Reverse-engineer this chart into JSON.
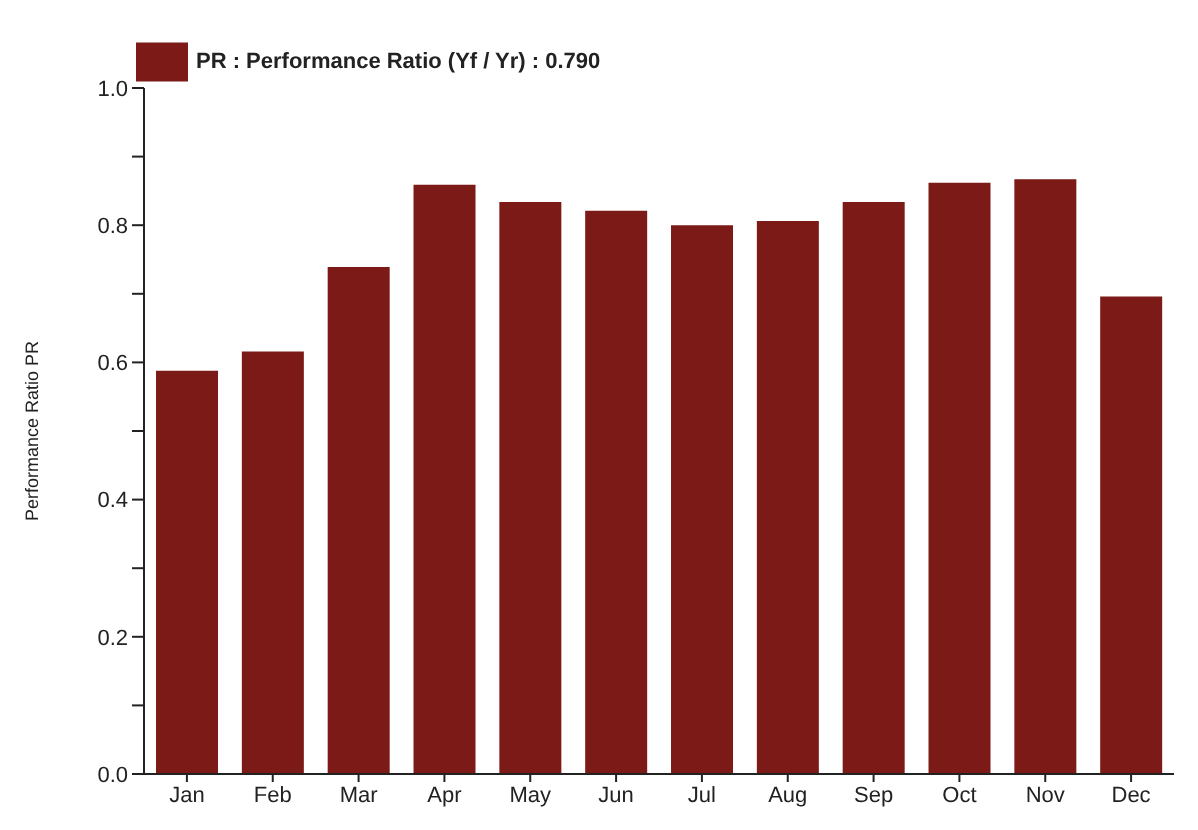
{
  "chart_data": {
    "type": "bar",
    "ylabel": "Performance Ratio  PR",
    "categories": [
      "Jan",
      "Feb",
      "Mar",
      "Apr",
      "May",
      "Jun",
      "Jul",
      "Aug",
      "Sep",
      "Oct",
      "Nov",
      "Dec"
    ],
    "series": [
      {
        "name": "PR : Performance Ratio (Yf / Yr) :  0.790",
        "color": "#7b1a16",
        "values": [
          0.588,
          0.616,
          0.739,
          0.859,
          0.834,
          0.821,
          0.8,
          0.806,
          0.834,
          0.862,
          0.867,
          0.696
        ]
      }
    ],
    "ylim": [
      0,
      1
    ],
    "yticks": [
      {
        "value": 0,
        "label": "0.0"
      },
      {
        "value": 0.1,
        "label": null
      },
      {
        "value": 0.2,
        "label": "0.2"
      },
      {
        "value": 0.3,
        "label": null
      },
      {
        "value": 0.4,
        "label": "0.4"
      },
      {
        "value": 0.5,
        "label": null
      },
      {
        "value": 0.6,
        "label": "0.6"
      },
      {
        "value": 0.7,
        "label": null
      },
      {
        "value": 0.8,
        "label": "0.8"
      },
      {
        "value": 0.9,
        "label": null
      },
      {
        "value": 1,
        "label": "1.0"
      }
    ],
    "legend": "top left"
  }
}
